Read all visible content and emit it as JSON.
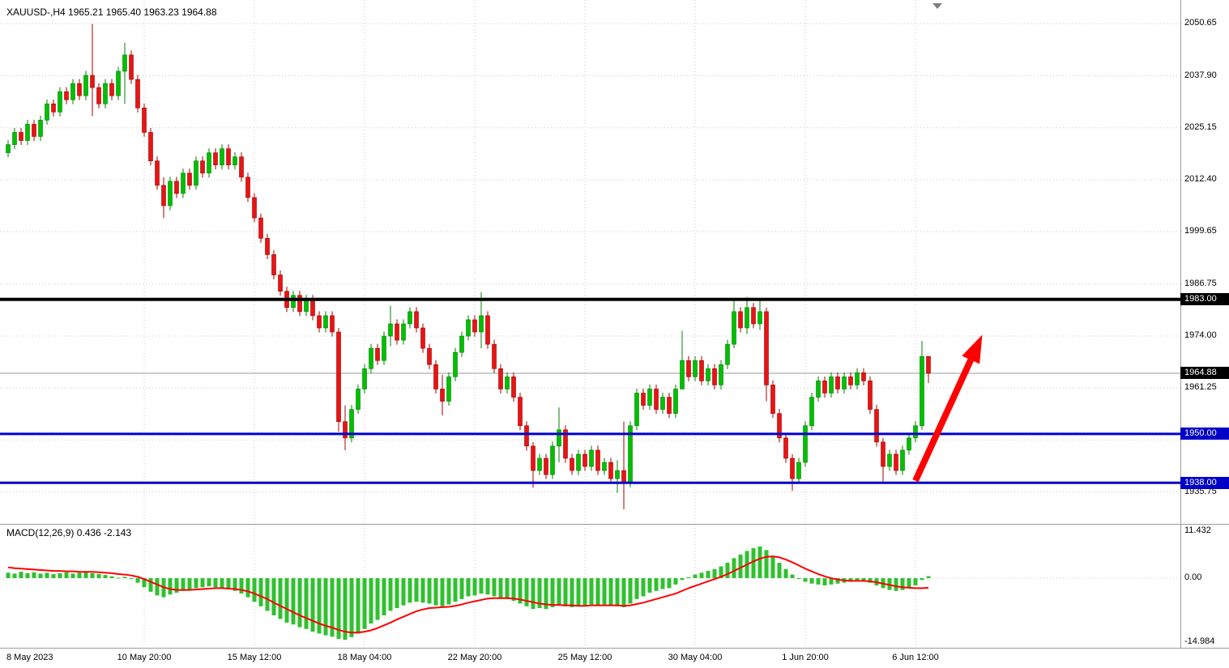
{
  "title": {
    "full": "XAUUSD-,H4  1965.21 1965.40 1963.23 1964.88"
  },
  "macd_label": "MACD(12,26,9) 0.436 -2.143",
  "colors": {
    "bull": "#00c000",
    "bull_edge": "#008000",
    "bear": "#e81414",
    "bear_edge": "#a00000",
    "macd_hist": "#2fc12f",
    "signal": "#ff0000",
    "level_black": "#000000",
    "level_blue": "#0000c8",
    "grid": "#c9c9c9",
    "separator": "#9c9c9c",
    "current_price_line": "#9a9a9a",
    "arrow": "#ff0000",
    "marker": "#808080"
  },
  "chart_data": {
    "type": "candlestick",
    "symbol": "XAUUSD-",
    "timeframe": "H4",
    "last_ohlc": {
      "open": 1965.21,
      "high": 1965.4,
      "low": 1963.23,
      "close": 1964.88
    },
    "ylim": [
      1928.3,
      2055.3
    ],
    "grid_levels": [
      2050.65,
      2037.9,
      2025.15,
      2012.4,
      1999.65,
      1986.75,
      1974.0,
      1961.25,
      1948.5,
      1935.75
    ],
    "price_axis_labels": [
      "2050.65",
      "2037.90",
      "2025.15",
      "2012.40",
      "1999.65",
      "1986.75",
      "1974.00",
      "1961.25",
      "1935.75"
    ],
    "boxed_price_labels": [
      {
        "text": "1983.00",
        "price": 1983.0,
        "bg": "#000000"
      },
      {
        "text": "1964.88",
        "price": 1964.88,
        "bg": "#000000"
      },
      {
        "text": "1950.00",
        "price": 1950.0,
        "bg": "#0000c8"
      },
      {
        "text": "1938.00",
        "price": 1938.0,
        "bg": "#0000c8"
      }
    ],
    "hlines": [
      {
        "price": 1983.0,
        "color": "#000000",
        "width": 4
      },
      {
        "price": 1950.0,
        "color": "#0000c8",
        "width": 3
      },
      {
        "price": 1938.0,
        "color": "#0000c8",
        "width": 3
      }
    ],
    "current_price": 1964.88,
    "time_labels": [
      {
        "text": "8 May 2023",
        "index": 0,
        "align": "left"
      },
      {
        "text": "10 May 20:00",
        "index": 21
      },
      {
        "text": "15 May 12:00",
        "index": 38
      },
      {
        "text": "18 May 04:00",
        "index": 55
      },
      {
        "text": "22 May 20:00",
        "index": 72
      },
      {
        "text": "25 May 12:00",
        "index": 89
      },
      {
        "text": "30 May 04:00",
        "index": 106
      },
      {
        "text": "1 Jun 20:00",
        "index": 123
      },
      {
        "text": "6 Jun 12:00",
        "index": 140
      }
    ],
    "candles": {
      "first_open": 2019,
      "default_wick": 1.1,
      "closes": [
        2021,
        2024,
        2022,
        2026,
        2023,
        2027,
        2031,
        2029,
        2034,
        2032,
        2036,
        2033,
        2038,
        2035,
        2031,
        2036,
        2033,
        2039,
        2043,
        2037,
        2030,
        2024,
        2017,
        2011,
        2006,
        2012,
        2009,
        2014,
        2011,
        2017,
        2014,
        2019,
        2016,
        2020,
        2016,
        2018,
        2013,
        2008,
        2003,
        1998,
        1994,
        1989,
        1985,
        1981,
        1984,
        1980,
        1983,
        1979,
        1976,
        1979,
        1975,
        1953,
        1949,
        1956,
        1961,
        1966,
        1971,
        1968,
        1974,
        1977,
        1973,
        1977,
        1980,
        1976,
        1971,
        1967,
        1961,
        1958,
        1964,
        1970,
        1974,
        1978,
        1975,
        1979,
        1972,
        1966,
        1961,
        1964,
        1959,
        1952,
        1947,
        1941,
        1944,
        1940,
        1947,
        1951,
        1944,
        1941,
        1945,
        1942,
        1946,
        1941,
        1943,
        1939,
        1941,
        1938,
        1952,
        1960,
        1957,
        1961,
        1956,
        1959,
        1955,
        1961,
        1968,
        1964,
        1968,
        1963,
        1966,
        1962,
        1967,
        1972,
        1980,
        1976,
        1981,
        1977,
        1980,
        1962,
        1955,
        1949,
        1944,
        1939,
        1943,
        1952,
        1959,
        1963,
        1960,
        1964,
        1961,
        1964,
        1962,
        1965,
        1963,
        1956,
        1948,
        1942,
        1945,
        1941,
        1946,
        1949,
        1952,
        1969,
        1964.88
      ],
      "wick_overrides": {
        "13": [
          2050.6,
          2028.0
        ],
        "18": [
          2046.0,
          2031.0
        ],
        "24": [
          2013.0,
          2003.0
        ],
        "51": [
          1976.0,
          1950.5
        ],
        "52": [
          1957.0,
          1946.0
        ],
        "59": [
          1981.5,
          1971.5
        ],
        "67": [
          1964.5,
          1954.5
        ],
        "73": [
          1984.8,
          1971.0
        ],
        "81": [
          1948.0,
          1936.8
        ],
        "85": [
          1956.5,
          1943.0
        ],
        "94": [
          1943.5,
          1935.5
        ],
        "95": [
          1953.0,
          1931.5
        ],
        "104": [
          1975.3,
          1961.0
        ],
        "112": [
          1983.2,
          1971.0
        ],
        "114": [
          1983.6,
          1974.5
        ],
        "116": [
          1983.2,
          1975.5
        ],
        "117": [
          1981.0,
          1958.0
        ],
        "121": [
          1945.0,
          1936.0
        ],
        "135": [
          1949.0,
          1938.3
        ],
        "141": [
          1972.8,
          1951.0
        ],
        "142": [
          1967.5,
          1962.5
        ]
      }
    },
    "macd": {
      "params": "12,26,9",
      "current_values": [
        0.436,
        -2.143
      ],
      "ylim": [
        -14.984,
        11.432
      ],
      "scale_labels": [
        {
          "text": "11.432",
          "value": 11.432
        },
        {
          "text": "0.00",
          "value": 0
        },
        {
          "text": "-14.984",
          "value": -14.984
        }
      ],
      "histogram": [
        1.2,
        1.0,
        1.4,
        1.1,
        1.3,
        1.0,
        1.2,
        0.9,
        1.1,
        1.3,
        1.0,
        1.2,
        1.4,
        1.1,
        0.9,
        0.7,
        0.4,
        0.1,
        0.3,
        -0.2,
        -1.0,
        -2.0,
        -3.0,
        -3.8,
        -4.2,
        -3.6,
        -3.2,
        -2.8,
        -2.6,
        -2.2,
        -2.0,
        -1.8,
        -2.0,
        -2.2,
        -2.5,
        -2.8,
        -3.4,
        -4.2,
        -5.2,
        -6.2,
        -7.2,
        -8.2,
        -9.0,
        -9.8,
        -10.2,
        -10.8,
        -11.2,
        -11.8,
        -12.2,
        -12.6,
        -12.9,
        -13.4,
        -13.6,
        -13.0,
        -12.2,
        -11.2,
        -10.0,
        -9.2,
        -8.2,
        -7.2,
        -6.6,
        -6.0,
        -5.4,
        -5.2,
        -5.4,
        -5.6,
        -6.0,
        -6.2,
        -5.8,
        -5.2,
        -4.6,
        -4.0,
        -3.8,
        -3.4,
        -3.6,
        -4.0,
        -4.4,
        -4.6,
        -5.0,
        -5.6,
        -6.2,
        -6.8,
        -6.6,
        -6.8,
        -6.4,
        -6.0,
        -6.2,
        -6.4,
        -6.2,
        -6.0,
        -5.8,
        -6.0,
        -5.8,
        -6.0,
        -6.2,
        -6.4,
        -5.6,
        -4.6,
        -4.0,
        -3.2,
        -2.8,
        -2.4,
        -2.2,
        -1.4,
        -0.4,
        0.2,
        0.8,
        1.2,
        1.6,
        2.0,
        2.6,
        3.4,
        4.4,
        5.2,
        6.0,
        6.6,
        7.0,
        6.2,
        4.8,
        3.4,
        2.0,
        0.8,
        -0.2,
        -0.8,
        -1.2,
        -1.4,
        -1.6,
        -1.4,
        -1.2,
        -1.0,
        -0.8,
        -0.6,
        -0.6,
        -1.0,
        -1.6,
        -2.2,
        -2.6,
        -2.8,
        -2.6,
        -2.2,
        -1.6,
        -0.4,
        0.436
      ],
      "signal": [
        2.4,
        2.2,
        2.1,
        2.0,
        1.9,
        1.8,
        1.7,
        1.6,
        1.6,
        1.5,
        1.5,
        1.4,
        1.4,
        1.4,
        1.3,
        1.2,
        1.1,
        0.9,
        0.8,
        0.6,
        0.3,
        -0.2,
        -0.8,
        -1.4,
        -2.0,
        -2.4,
        -2.6,
        -2.6,
        -2.6,
        -2.5,
        -2.4,
        -2.3,
        -2.2,
        -2.2,
        -2.3,
        -2.4,
        -2.6,
        -2.9,
        -3.4,
        -4.0,
        -4.6,
        -5.4,
        -6.1,
        -6.8,
        -7.5,
        -8.2,
        -8.8,
        -9.4,
        -10.0,
        -10.5,
        -10.9,
        -11.4,
        -11.8,
        -12.0,
        -12.0,
        -11.8,
        -11.5,
        -11.0,
        -10.4,
        -9.8,
        -9.1,
        -8.5,
        -7.9,
        -7.3,
        -6.9,
        -6.6,
        -6.5,
        -6.4,
        -6.3,
        -6.1,
        -5.8,
        -5.4,
        -5.1,
        -4.8,
        -4.5,
        -4.4,
        -4.4,
        -4.4,
        -4.5,
        -4.7,
        -5.0,
        -5.3,
        -5.6,
        -5.8,
        -5.9,
        -5.9,
        -6.0,
        -6.0,
        -6.1,
        -6.1,
        -6.0,
        -6.0,
        -6.0,
        -6.0,
        -6.0,
        -6.1,
        -6.0,
        -5.7,
        -5.4,
        -5.0,
        -4.6,
        -4.2,
        -3.8,
        -3.4,
        -2.8,
        -2.2,
        -1.7,
        -1.2,
        -0.7,
        -0.2,
        0.3,
        0.9,
        1.6,
        2.3,
        3.0,
        3.7,
        4.3,
        4.7,
        4.8,
        4.6,
        4.1,
        3.5,
        2.8,
        2.1,
        1.5,
        0.9,
        0.4,
        0.0,
        -0.3,
        -0.5,
        -0.6,
        -0.6,
        -0.6,
        -0.7,
        -0.9,
        -1.2,
        -1.5,
        -1.8,
        -2.0,
        -2.1,
        -2.2,
        -2.2,
        -2.143
      ]
    },
    "arrow": {
      "from": {
        "index": 140,
        "price": 1938.5
      },
      "to": {
        "index": 150.3,
        "price": 1974.3
      }
    }
  }
}
